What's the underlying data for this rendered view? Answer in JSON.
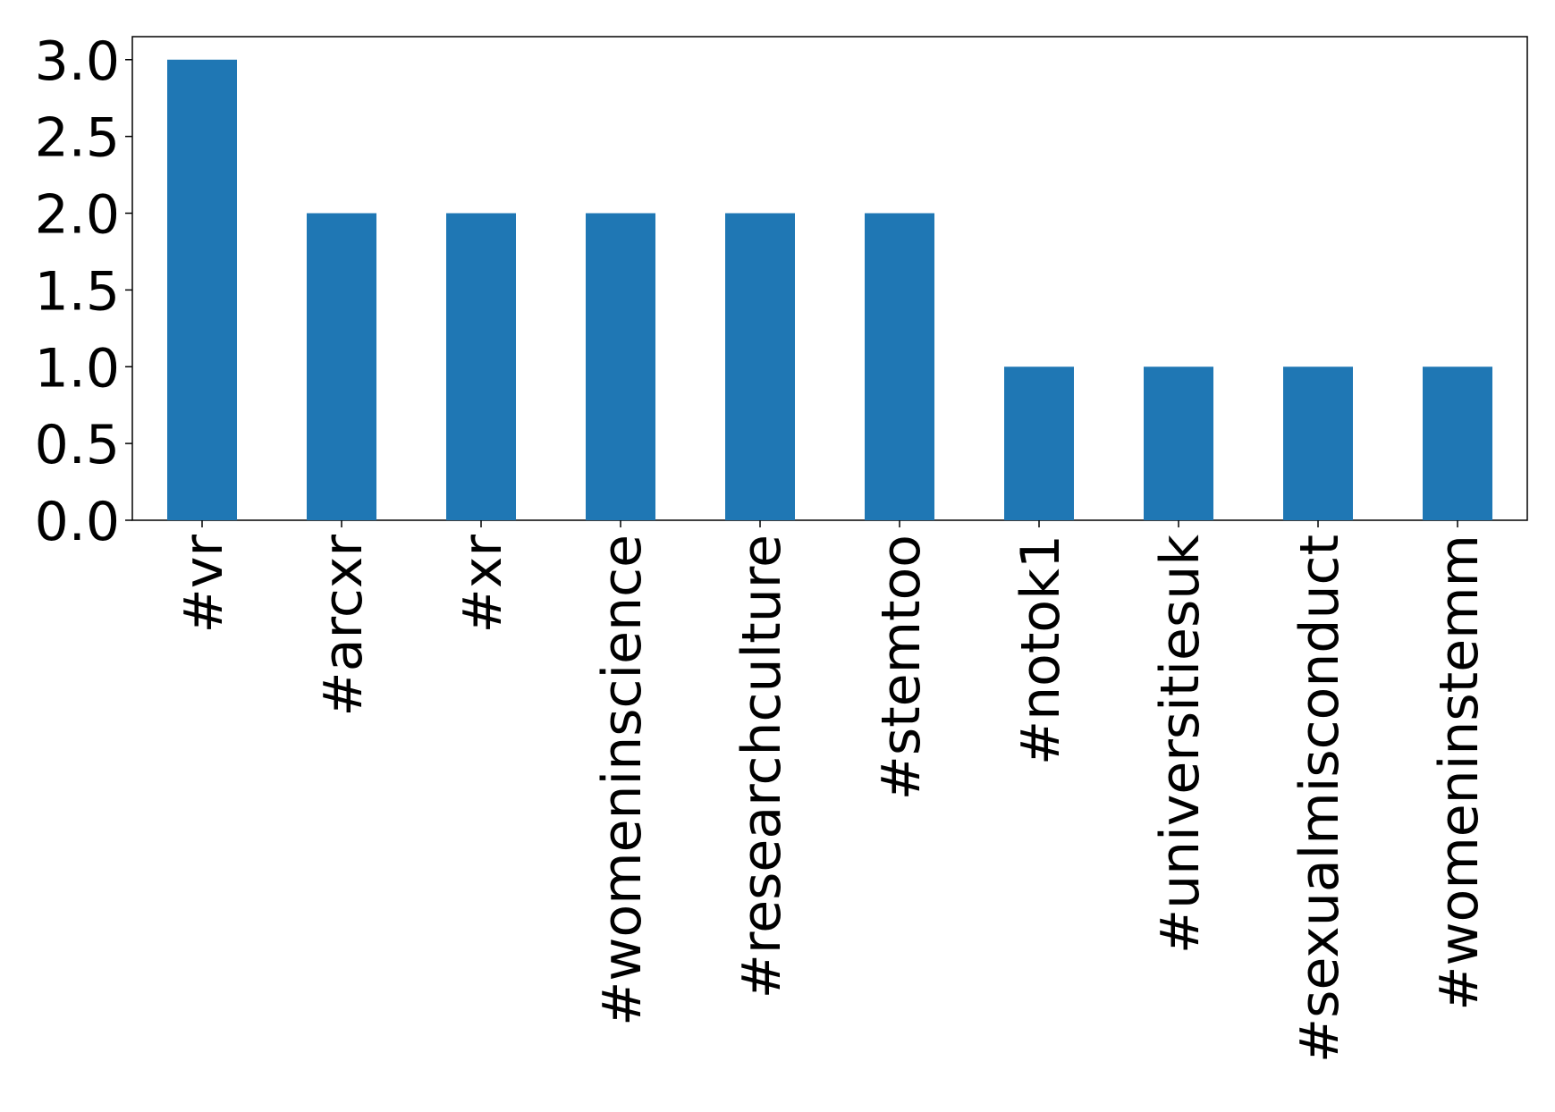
{
  "chart_data": {
    "type": "bar",
    "categories": [
      "#vr",
      "#arcxr",
      "#xr",
      "#womeninscience",
      "#researchculture",
      "#stemtoo",
      "#notok1",
      "#universitiesuk",
      "#sexualmisconduct",
      "#womeninstemm"
    ],
    "values": [
      3,
      2,
      2,
      2,
      2,
      2,
      1,
      1,
      1,
      1
    ],
    "color": "#1f77b4",
    "ylim": [
      0,
      3.15
    ],
    "yticks": [
      {
        "value": 0,
        "label": "0.0"
      },
      0.5,
      {
        "value": 1,
        "label": "1.0"
      },
      1.5,
      {
        "value": 2,
        "label": "2.0"
      },
      2.5,
      {
        "value": 3,
        "label": "3.0"
      }
    ],
    "grid": false
  }
}
